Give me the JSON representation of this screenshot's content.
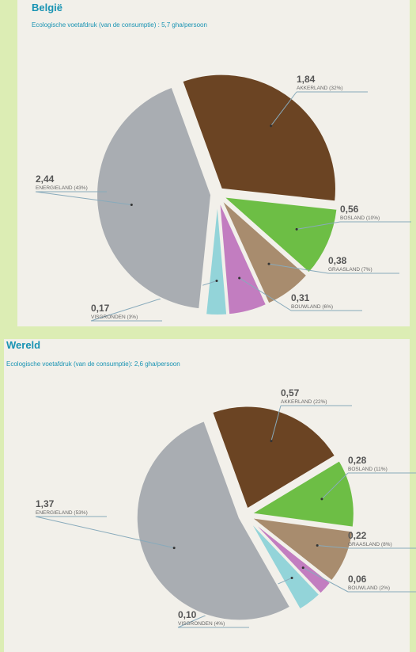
{
  "chart_data": [
    {
      "type": "pie",
      "title": "België",
      "subtitle": "Ecologische voetafdruk (van de consumptie) : 5,7 gha/persoon",
      "categories": [
        "AKKERLAND (32%)",
        "BOSLAND (10%)",
        "GRAASLAND (7%)",
        "BOUWLAND (6%)",
        "VISGRONDEN (3%)",
        "ENERGIELAND (43%)"
      ],
      "values": [
        1.84,
        0.56,
        0.38,
        0.31,
        0.17,
        2.44
      ],
      "value_labels": [
        "1,84",
        "0,56",
        "0,38",
        "0,31",
        "0,17",
        "2,44"
      ],
      "colors": [
        "#6b4423",
        "#6dbe45",
        "#a88c6e",
        "#c27dc0",
        "#93d4d9",
        "#a9adb2"
      ]
    },
    {
      "type": "pie",
      "title": "Wereld",
      "subtitle": "Ecologische voetafdruk (van de consumptie): 2,6 gha/persoon",
      "categories": [
        "AKKERLAND (22%)",
        "BOSLAND (11%)",
        "GRAASLAND (8%)",
        "BOUWLAND (2%)",
        "VISGRONDEN (4%)",
        "ENERGIELAND (53%)"
      ],
      "values": [
        0.57,
        0.28,
        0.22,
        0.06,
        0.1,
        1.37
      ],
      "value_labels": [
        "0,57",
        "0,28",
        "0,22",
        "0,06",
        "0,10",
        "1,37"
      ],
      "colors": [
        "#6b4423",
        "#6dbe45",
        "#a88c6e",
        "#c27dc0",
        "#93d4d9",
        "#a9adb2"
      ]
    }
  ]
}
